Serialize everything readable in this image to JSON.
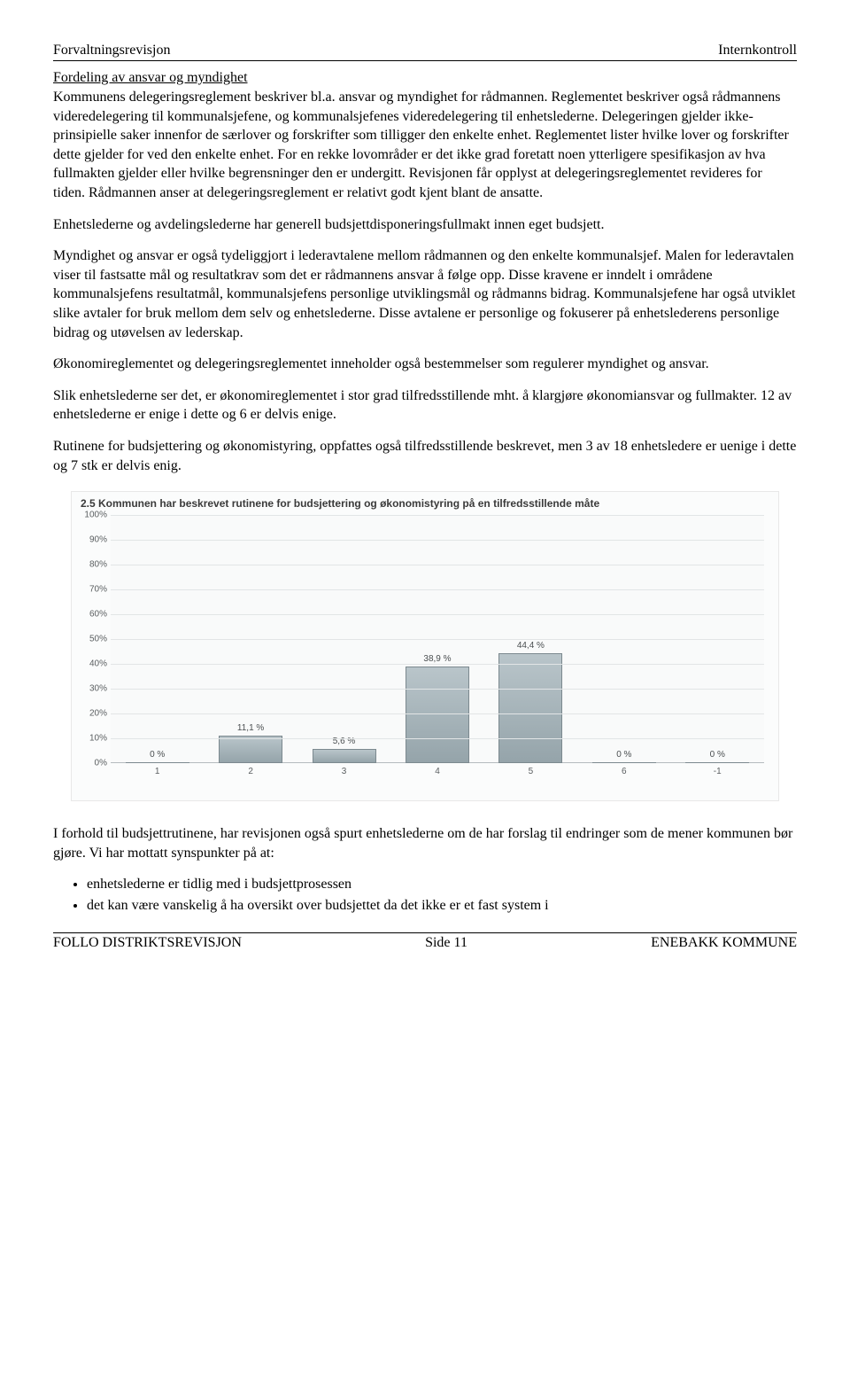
{
  "header": {
    "left": "Forvaltningsrevisjon",
    "right": "Internkontroll"
  },
  "sectionTitle": "Fordeling av ansvar og myndighet",
  "paragraphs": {
    "p1": "Kommunens delegeringsreglement beskriver bl.a. ansvar og myndighet for rådmannen. Reglementet beskriver også rådmannens videredelegering til kommunalsjefene, og kommunalsjefenes videredelegering til enhetslederne. Delegeringen gjelder ikke-prinsipielle saker innenfor de særlover og forskrifter som tilligger den enkelte enhet. Reglementet lister hvilke lover og forskrifter dette gjelder for ved den enkelte enhet. For en rekke lovområder er det ikke grad foretatt noen ytterligere spesifikasjon av hva fullmakten gjelder eller hvilke begrensninger den er undergitt. Revisjonen får opplyst at delegeringsreglementet revideres for tiden. Rådmannen anser at delegeringsreglement er relativt godt kjent blant de ansatte.",
    "p2": "Enhetslederne og avdelingslederne har generell budsjettdisponeringsfullmakt innen eget budsjett.",
    "p3": "Myndighet og ansvar er også tydeliggjort i lederavtalene mellom rådmannen og den enkelte kommunalsjef. Malen for lederavtalen viser til fastsatte mål og resultatkrav som det er rådmannens ansvar å følge opp. Disse kravene er inndelt i områdene kommunalsjefens resultatmål, kommunalsjefens personlige utviklingsmål og rådmanns bidrag. Kommunalsjefene har  også utviklet slike avtaler for bruk mellom dem selv og enhetslederne. Disse avtalene er personlige og fokuserer på enhetslederens personlige bidrag og utøvelsen av lederskap.",
    "p4": "Økonomireglementet og delegeringsreglementet inneholder også bestemmelser som regulerer myndighet og ansvar.",
    "p5": "Slik enhetslederne ser det, er økonomireglementet i stor grad tilfredsstillende mht. å klargjøre økonomiansvar og fullmakter. 12 av enhetslederne er enige i dette og 6 er delvis enige.",
    "p6": "Rutinene for budsjettering og økonomistyring, oppfattes også tilfredsstillende beskrevet, men 3 av 18 enhetsledere er uenige i dette og 7 stk er delvis enig.",
    "p7": "I forhold til budsjettrutinene, har revisjonen også spurt enhetslederne om de har forslag til endringer som de mener kommunen bør gjøre. Vi har mottatt synspunkter på at:"
  },
  "bullets": [
    "enhetslederne er tidlig med i budsjettprosessen",
    "det kan være vanskelig å ha oversikt over budsjettet da det ikke er et fast system i"
  ],
  "chart": {
    "title": "2.5 Kommunen har beskrevet rutinene for budsjettering og økonomistyring på en tilfredsstillende  måte",
    "type": "bar",
    "plotHeight": 280,
    "ylim": [
      0,
      100
    ],
    "ytickStep": 10,
    "ytickSuffix": "%",
    "categories": [
      "1",
      "2",
      "3",
      "4",
      "5",
      "6",
      "-1"
    ],
    "values": [
      0,
      11.1,
      5.6,
      38.9,
      44.4,
      0,
      0
    ],
    "valueLabels": [
      "0 %",
      "11,1 %",
      "5,6 %",
      "38,9 %",
      "44,4 %",
      "0 %",
      "0 %"
    ],
    "barFillTop": "#b9c5ca",
    "barFillBottom": "#95a4aa",
    "barBorder": "#7c898f",
    "gridColor": "#e2e5e6",
    "background": "#f9fafa",
    "labelFontSize": 10,
    "titleFontSize": 12
  },
  "footer": {
    "left": "FOLLO DISTRIKTSREVISJON",
    "centerPrefix": "Side ",
    "page": "11",
    "right": "ENEBAKK KOMMUNE"
  }
}
